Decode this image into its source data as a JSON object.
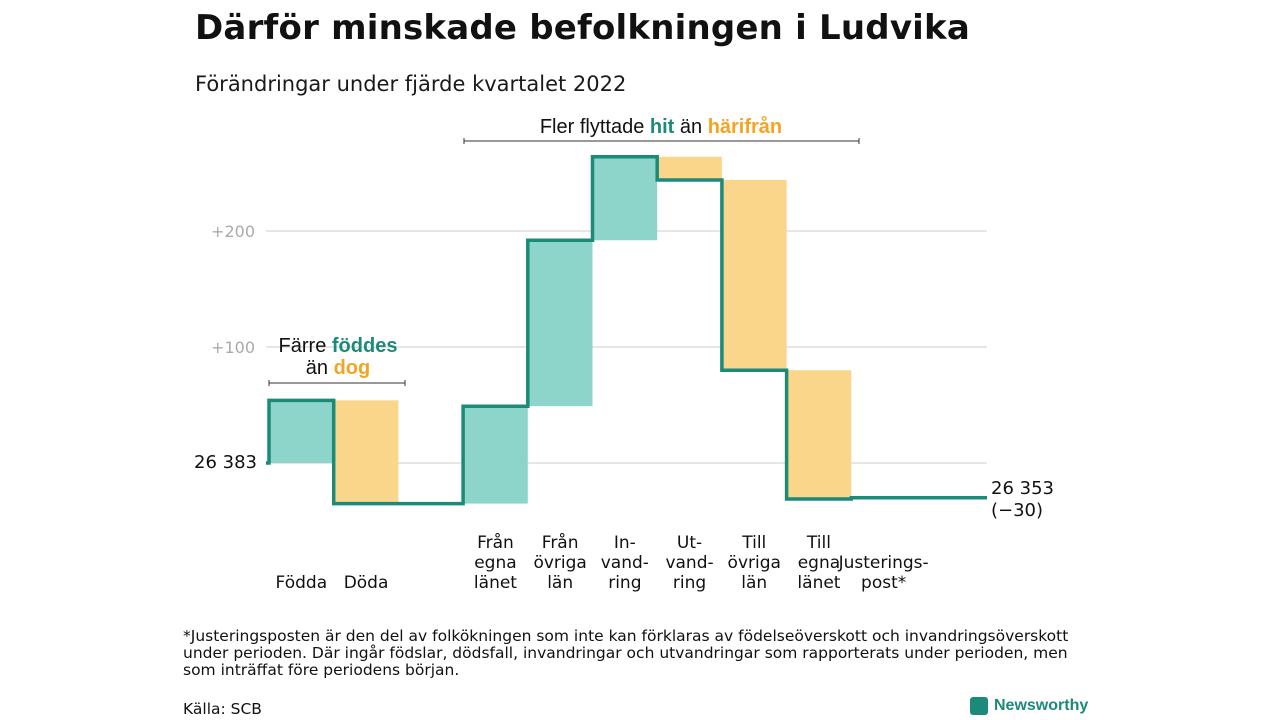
{
  "title": "Därför minskade befolkningen i Ludvika",
  "subtitle": "Förändringar under fjärde kvartalet 2022",
  "footnote": "*Justeringsposten är den del av folkökningen som inte kan förklaras av födelseöverskott och invandringsöverskott under perioden. Där ingår födslar, dödsfall, invandringar och utvandringar som rapporterats under perioden, men som inträffat före periodens början.",
  "source": "Källa: SCB",
  "brand": "Newsworthy",
  "colors": {
    "increase_fill": "#8dd5cb",
    "decrease_fill": "#fad68a",
    "step_line": "#1c8a78",
    "teal_text": "#1c8a78",
    "orange_text": "#f5a422",
    "grid": "#dddddd",
    "tick_text": "#aaaaaa"
  },
  "annotations": {
    "births": {
      "line1_prefix": "Färre ",
      "line1_highlight": "föddes",
      "line2_prefix": "än ",
      "line2_highlight": "dog"
    },
    "migration": {
      "prefix": "Fler flyttade ",
      "highlight1": "hit",
      "middle": " än ",
      "highlight2": "härifrån"
    }
  },
  "chart_data": {
    "type": "waterfall",
    "start_value": 26383,
    "start_label": "26 383",
    "end_value": 26353,
    "end_label": "26 353",
    "end_change_label": "(−30)",
    "yticks": [
      {
        "value": 100,
        "label": "+100"
      },
      {
        "value": 200,
        "label": "+200"
      }
    ],
    "ylim": [
      -40,
      264
    ],
    "grid": true,
    "categories": [
      {
        "label": [
          "Födda"
        ],
        "value": 54
      },
      {
        "label": [
          "Döda"
        ],
        "value": -89
      },
      {
        "label": [],
        "value": 0
      },
      {
        "label": [
          "Från",
          "egna",
          "länet"
        ],
        "value": 84
      },
      {
        "label": [
          "Från",
          "övriga",
          "län"
        ],
        "value": 143
      },
      {
        "label": [
          "In-",
          "vand-",
          "ring"
        ],
        "value": 72
      },
      {
        "label": [
          "Ut-",
          "vand-",
          "ring"
        ],
        "value": -20
      },
      {
        "label": [
          "Till",
          "övriga",
          "län"
        ],
        "value": -164
      },
      {
        "label": [
          "Till",
          "egna",
          "länet"
        ],
        "value": -111
      },
      {
        "label": [
          "Justerings-",
          "post*"
        ],
        "value": 1
      }
    ]
  }
}
